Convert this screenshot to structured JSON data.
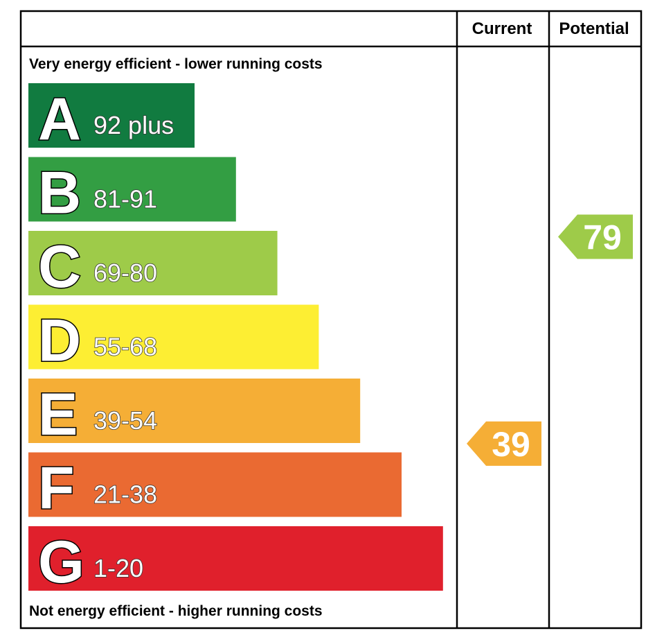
{
  "chart_data": {
    "type": "bar",
    "header": {
      "current": "Current",
      "potential": "Potential"
    },
    "top_caption": "Very energy efficient - lower running costs",
    "bottom_caption": "Not energy efficient - higher running costs",
    "bands": [
      {
        "letter": "A",
        "range": "92 plus",
        "color": "#117b40"
      },
      {
        "letter": "B",
        "range": "81-91",
        "color": "#339e43"
      },
      {
        "letter": "C",
        "range": "69-80",
        "color": "#9ecb49"
      },
      {
        "letter": "D",
        "range": "55-68",
        "color": "#fdee33"
      },
      {
        "letter": "E",
        "range": "39-54",
        "color": "#f5ae36"
      },
      {
        "letter": "F",
        "range": "21-38",
        "color": "#ea6a32"
      },
      {
        "letter": "G",
        "range": "1-20",
        "color": "#e0202c"
      }
    ],
    "current": {
      "value": "39",
      "color": "#f5ae36"
    },
    "potential": {
      "value": "79",
      "color": "#9ecb49"
    }
  }
}
